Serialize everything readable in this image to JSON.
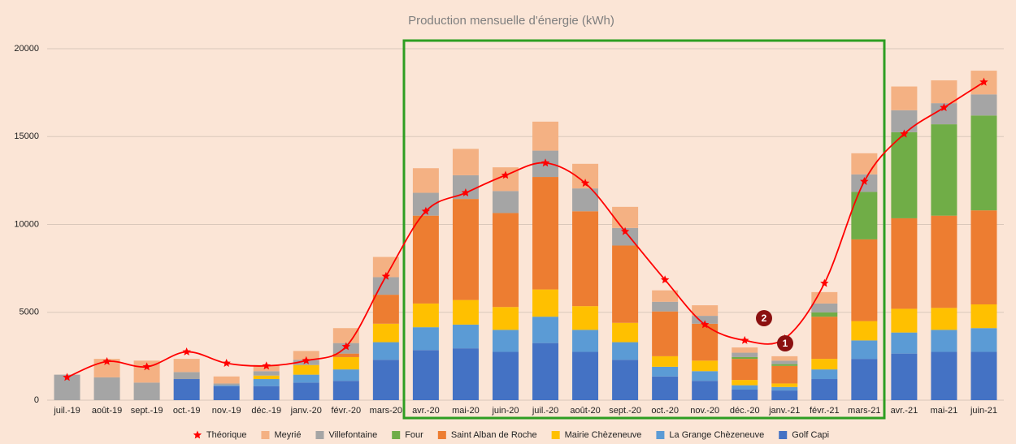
{
  "chart_data": {
    "type": "stacked-bar-line",
    "title": "Production mensuelle d'énergie (kWh)",
    "categories": [
      "juil.-19",
      "août-19",
      "sept.-19",
      "oct.-19",
      "nov.-19",
      "déc.-19",
      "janv.-20",
      "févr.-20",
      "mars-20",
      "avr.-20",
      "mai-20",
      "juin-20",
      "juil.-20",
      "août-20",
      "sept.-20",
      "oct.-20",
      "nov.-20",
      "déc.-20",
      "janv.-21",
      "févr.-21",
      "mars-21",
      "avr.-21",
      "mai-21",
      "juin-21"
    ],
    "series": [
      {
        "name": "Théorique",
        "type": "line",
        "color": "#ff0000",
        "values": [
          1300,
          2200,
          1900,
          2750,
          2100,
          1950,
          2250,
          3050,
          7050,
          10750,
          11800,
          12800,
          13500,
          12350,
          9600,
          6850,
          4300,
          3400,
          3500,
          6650,
          12450,
          15150,
          16650,
          18100
        ]
      },
      {
        "name": "Meyrié",
        "type": "bar",
        "color": "#f4b183",
        "values": [
          0,
          1050,
          1250,
          750,
          400,
          350,
          500,
          850,
          1150,
          1400,
          1500,
          1350,
          1650,
          1400,
          1200,
          650,
          600,
          300,
          250,
          650,
          1200,
          1350,
          1300,
          1350
        ]
      },
      {
        "name": "Villefontaine",
        "type": "bar",
        "color": "#a5a5a5",
        "values": [
          1450,
          1300,
          1000,
          400,
          100,
          250,
          300,
          600,
          1000,
          1300,
          1350,
          1250,
          1500,
          1300,
          1000,
          550,
          450,
          250,
          200,
          500,
          1000,
          1250,
          1200,
          1200
        ]
      },
      {
        "name": "Four",
        "type": "bar",
        "color": "#70ad47",
        "values": [
          0,
          0,
          0,
          0,
          0,
          0,
          0,
          0,
          0,
          0,
          0,
          0,
          0,
          0,
          0,
          0,
          0,
          100,
          100,
          250,
          2700,
          4900,
          5200,
          5400
        ]
      },
      {
        "name": "Saint Alban de Roche",
        "type": "bar",
        "color": "#ed7d31",
        "values": [
          0,
          0,
          0,
          0,
          0,
          0,
          0,
          200,
          1650,
          5000,
          5750,
          5350,
          6400,
          5400,
          4400,
          2550,
          2100,
          1200,
          1000,
          2400,
          4650,
          5150,
          5250,
          5350
        ]
      },
      {
        "name": "Mairie Chèzeneuve",
        "type": "bar",
        "color": "#ffc000",
        "values": [
          0,
          0,
          0,
          0,
          0,
          200,
          550,
          700,
          1050,
          1350,
          1400,
          1300,
          1550,
          1350,
          1100,
          600,
          600,
          300,
          200,
          600,
          1100,
          1350,
          1250,
          1350
        ]
      },
      {
        "name": "La Grange Chèzeneuve",
        "type": "bar",
        "color": "#5b9bd5",
        "values": [
          0,
          0,
          0,
          0,
          50,
          400,
          450,
          650,
          1000,
          1300,
          1350,
          1250,
          1500,
          1250,
          1000,
          550,
          550,
          250,
          200,
          550,
          1050,
          1200,
          1250,
          1350
        ]
      },
      {
        "name": "Golf Capi",
        "type": "bar",
        "color": "#4472c4",
        "values": [
          0,
          0,
          0,
          1200,
          800,
          800,
          1000,
          1100,
          2300,
          2850,
          2950,
          2750,
          3250,
          2750,
          2300,
          1350,
          1100,
          600,
          550,
          1200,
          2350,
          2650,
          2750,
          2750
        ]
      }
    ],
    "ylim": [
      0,
      20000
    ],
    "yticks": [
      0,
      5000,
      10000,
      15000,
      20000
    ],
    "grid": true,
    "legend": "bottom",
    "annotations": [
      "1",
      "2"
    ]
  }
}
